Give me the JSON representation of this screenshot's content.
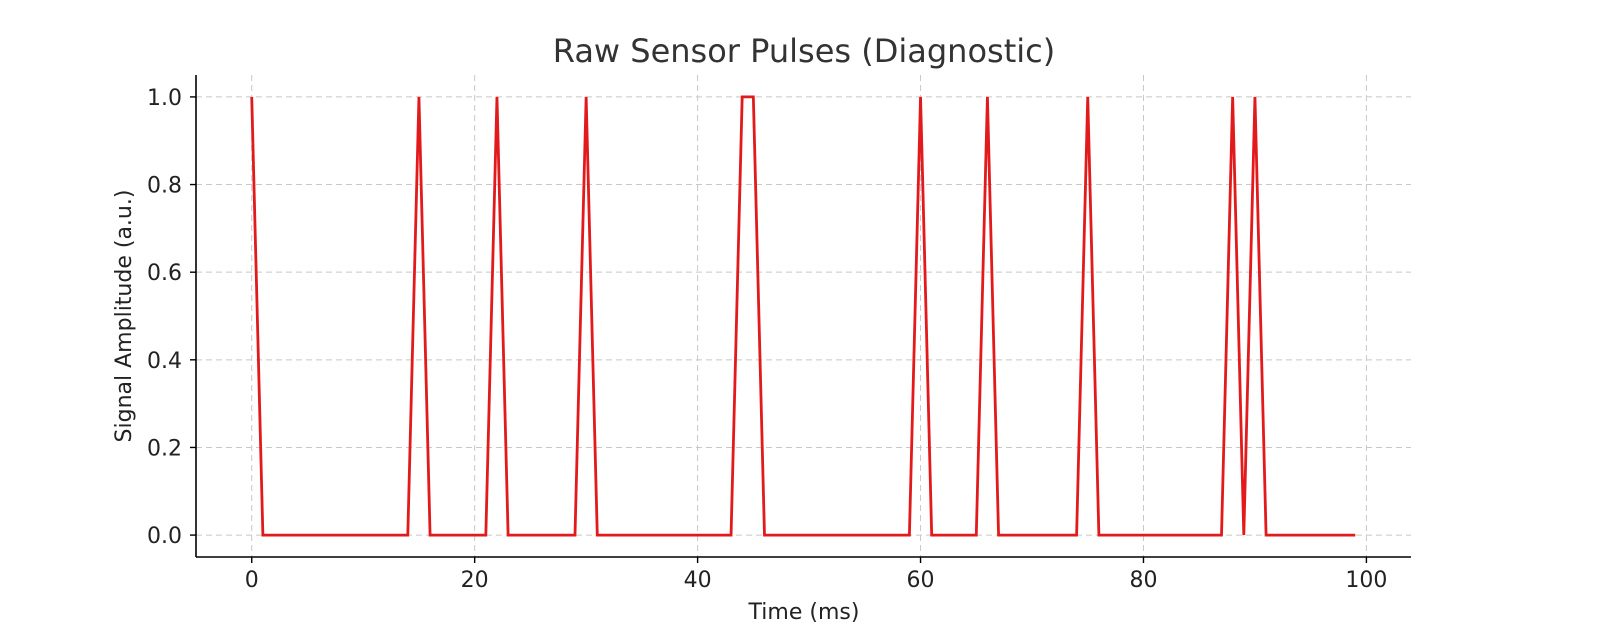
{
  "chart_data": {
    "type": "line",
    "title": "Raw Sensor Pulses (Diagnostic)",
    "xlabel": "Time (ms)",
    "ylabel": "Signal Amplitude (a.u.)",
    "xlim": [
      -5,
      104
    ],
    "ylim": [
      -0.05,
      1.05
    ],
    "xticks": [
      0,
      20,
      40,
      60,
      80,
      100
    ],
    "yticks": [
      0.0,
      0.2,
      0.4,
      0.6,
      0.8,
      1.0
    ],
    "xtick_labels": [
      "0",
      "20",
      "40",
      "60",
      "80",
      "100"
    ],
    "ytick_labels": [
      "0.0",
      "0.2",
      "0.4",
      "0.6",
      "0.8",
      "1.0"
    ],
    "grid": true,
    "series": [
      {
        "color": "#e31a1c",
        "x": [
          0,
          1,
          14,
          15,
          16,
          21,
          22,
          23,
          29,
          30,
          31,
          43,
          44,
          45,
          46,
          59,
          60,
          61,
          65,
          66,
          67,
          74,
          75,
          76,
          87,
          88,
          89,
          90,
          91,
          99
        ],
        "y": [
          1,
          0,
          0,
          1,
          0,
          0,
          1,
          0,
          0,
          1,
          0,
          0,
          1,
          1,
          0,
          0,
          1,
          0,
          0,
          1,
          0,
          0,
          1,
          0,
          0,
          1,
          0,
          1,
          0,
          0
        ]
      }
    ]
  }
}
